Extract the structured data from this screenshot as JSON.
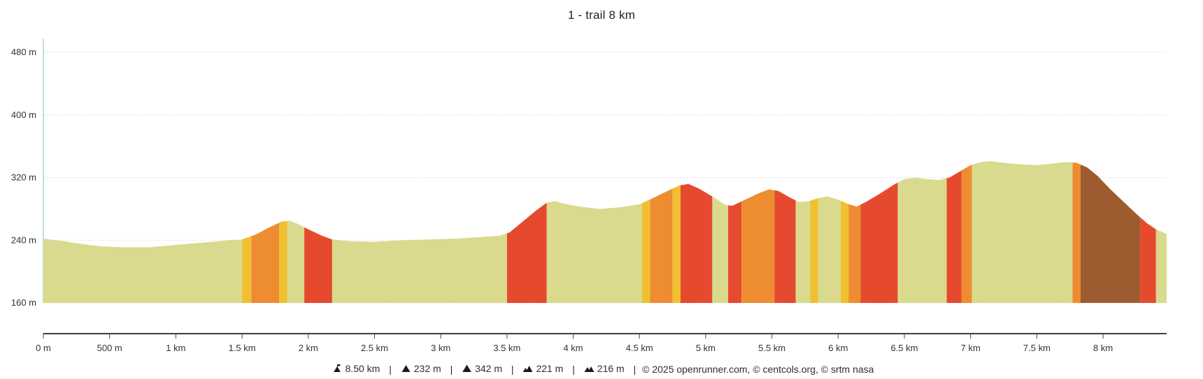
{
  "title": "1 - trail 8 km",
  "chart_data": {
    "type": "area",
    "title": "1 - trail 8 km",
    "xlabel": "distance",
    "ylabel": "elevation",
    "x_unit": "km",
    "y_unit": "m",
    "xlim": [
      0,
      8.48
    ],
    "ylim": [
      160,
      480
    ],
    "grid": "horizontal-dotted",
    "y_ticks": [
      {
        "value": 480,
        "label": "480 m"
      },
      {
        "value": 400,
        "label": "400 m"
      },
      {
        "value": 320,
        "label": "320 m"
      },
      {
        "value": 240,
        "label": "240 m"
      },
      {
        "value": 160,
        "label": "160 m"
      }
    ],
    "x_ticks": [
      {
        "value": 0,
        "label": "0 m"
      },
      {
        "value": 0.5,
        "label": "500 m"
      },
      {
        "value": 1,
        "label": "1 km"
      },
      {
        "value": 1.5,
        "label": "1.5 km"
      },
      {
        "value": 2,
        "label": "2 km"
      },
      {
        "value": 2.5,
        "label": "2.5 km"
      },
      {
        "value": 3,
        "label": "3 km"
      },
      {
        "value": 3.5,
        "label": "3.5 km"
      },
      {
        "value": 4,
        "label": "4 km"
      },
      {
        "value": 4.5,
        "label": "4.5 km"
      },
      {
        "value": 5,
        "label": "5 km"
      },
      {
        "value": 5.5,
        "label": "5.5 km"
      },
      {
        "value": 6,
        "label": "6 km"
      },
      {
        "value": 6.5,
        "label": "6.5 km"
      },
      {
        "value": 7,
        "label": "7 km"
      },
      {
        "value": 7.5,
        "label": "7.5 km"
      },
      {
        "value": 8,
        "label": "8 km"
      }
    ],
    "profile": [
      [
        0.0,
        242
      ],
      [
        0.15,
        239
      ],
      [
        0.3,
        235
      ],
      [
        0.45,
        232
      ],
      [
        0.6,
        231
      ],
      [
        0.8,
        231
      ],
      [
        1.0,
        234
      ],
      [
        1.2,
        237
      ],
      [
        1.4,
        240
      ],
      [
        1.5,
        241
      ],
      [
        1.6,
        247
      ],
      [
        1.7,
        256
      ],
      [
        1.8,
        264
      ],
      [
        1.86,
        265
      ],
      [
        1.92,
        261
      ],
      [
        2.0,
        254
      ],
      [
        2.1,
        246
      ],
      [
        2.18,
        241
      ],
      [
        2.3,
        239
      ],
      [
        2.5,
        238
      ],
      [
        2.7,
        240
      ],
      [
        2.9,
        241
      ],
      [
        3.1,
        242
      ],
      [
        3.3,
        244
      ],
      [
        3.45,
        246
      ],
      [
        3.52,
        250
      ],
      [
        3.62,
        264
      ],
      [
        3.72,
        278
      ],
      [
        3.8,
        288
      ],
      [
        3.86,
        290
      ],
      [
        3.95,
        286
      ],
      [
        4.05,
        283
      ],
      [
        4.2,
        280
      ],
      [
        4.35,
        282
      ],
      [
        4.5,
        286
      ],
      [
        4.58,
        292
      ],
      [
        4.7,
        302
      ],
      [
        4.8,
        310
      ],
      [
        4.87,
        312
      ],
      [
        4.95,
        306
      ],
      [
        5.05,
        296
      ],
      [
        5.15,
        285
      ],
      [
        5.2,
        284
      ],
      [
        5.3,
        292
      ],
      [
        5.4,
        300
      ],
      [
        5.48,
        305
      ],
      [
        5.55,
        303
      ],
      [
        5.62,
        296
      ],
      [
        5.7,
        289
      ],
      [
        5.78,
        290
      ],
      [
        5.85,
        294
      ],
      [
        5.92,
        296
      ],
      [
        6.0,
        292
      ],
      [
        6.08,
        286
      ],
      [
        6.14,
        283
      ],
      [
        6.22,
        290
      ],
      [
        6.32,
        300
      ],
      [
        6.42,
        311
      ],
      [
        6.5,
        318
      ],
      [
        6.58,
        320
      ],
      [
        6.68,
        318
      ],
      [
        6.76,
        317
      ],
      [
        6.84,
        320
      ],
      [
        6.92,
        328
      ],
      [
        7.0,
        336
      ],
      [
        7.08,
        340
      ],
      [
        7.15,
        341
      ],
      [
        7.25,
        339
      ],
      [
        7.38,
        337
      ],
      [
        7.5,
        336
      ],
      [
        7.62,
        338
      ],
      [
        7.72,
        340
      ],
      [
        7.8,
        339
      ],
      [
        7.88,
        333
      ],
      [
        7.96,
        322
      ],
      [
        8.05,
        306
      ],
      [
        8.15,
        290
      ],
      [
        8.25,
        274
      ],
      [
        8.33,
        262
      ],
      [
        8.4,
        254
      ],
      [
        8.48,
        248
      ]
    ],
    "gradient_segments": [
      [
        0.0,
        1.5,
        "base"
      ],
      [
        1.5,
        1.57,
        "yellow"
      ],
      [
        1.57,
        1.78,
        "orange"
      ],
      [
        1.78,
        1.84,
        "yellow"
      ],
      [
        1.84,
        1.97,
        "base"
      ],
      [
        1.97,
        2.18,
        "red"
      ],
      [
        2.18,
        3.5,
        "base"
      ],
      [
        3.5,
        3.8,
        "red"
      ],
      [
        3.8,
        4.52,
        "base"
      ],
      [
        4.52,
        4.58,
        "yellow"
      ],
      [
        4.58,
        4.75,
        "orange"
      ],
      [
        4.75,
        4.81,
        "yellow"
      ],
      [
        4.81,
        5.05,
        "red"
      ],
      [
        5.05,
        5.17,
        "base"
      ],
      [
        5.17,
        5.27,
        "red"
      ],
      [
        5.27,
        5.52,
        "orange"
      ],
      [
        5.52,
        5.68,
        "red"
      ],
      [
        5.68,
        5.79,
        "base"
      ],
      [
        5.79,
        5.85,
        "yellow"
      ],
      [
        5.85,
        6.02,
        "base"
      ],
      [
        6.02,
        6.08,
        "yellow"
      ],
      [
        6.08,
        6.17,
        "orange"
      ],
      [
        6.17,
        6.45,
        "red"
      ],
      [
        6.45,
        6.82,
        "base"
      ],
      [
        6.82,
        6.93,
        "red"
      ],
      [
        6.93,
        7.01,
        "orange"
      ],
      [
        7.01,
        7.77,
        "base"
      ],
      [
        7.77,
        7.83,
        "orange"
      ],
      [
        7.83,
        8.28,
        "brown"
      ],
      [
        8.28,
        8.4,
        "red"
      ],
      [
        8.4,
        8.48,
        "base"
      ]
    ],
    "colors": {
      "base": "#d9da8e",
      "yellow": "#f0c030",
      "orange": "#ee8c31",
      "red": "#e64a2e",
      "brown": "#9d5c30",
      "grid": "#d9d9d9",
      "axis": "#3f3f3f",
      "y_axis_line": "#7fbfae"
    }
  },
  "footer": {
    "stats": [
      {
        "icon": "distance-icon",
        "value": "8.50 km"
      },
      {
        "icon": "ascent-icon",
        "value": "232 m"
      },
      {
        "icon": "max-elevation-icon",
        "value": "342 m"
      },
      {
        "icon": "descent-icon",
        "value": "221 m"
      },
      {
        "icon": "min-elevation-icon",
        "value": "216 m"
      }
    ],
    "separator": "|",
    "copyright": "© 2025 openrunner.com, © centcols.org, © srtm nasa"
  }
}
